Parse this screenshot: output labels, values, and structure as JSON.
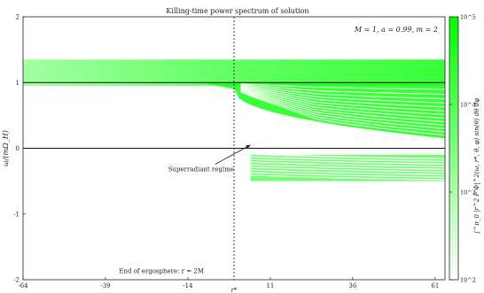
{
  "chart_data": {
    "type": "heatmap",
    "title": "Killing-time power spectrum of solution",
    "xlabel": "r*",
    "ylabel": "ω/(mΩ_H)",
    "xlim": [
      -64,
      64
    ],
    "ylim": [
      -2,
      2
    ],
    "x_ticks": [
      -64,
      -39,
      -14,
      11,
      36,
      61
    ],
    "y_ticks": [
      -2,
      -1,
      0,
      1,
      2
    ],
    "parameters_label": "M = 1, a = 0.99, m = 2",
    "reference_lines": {
      "horizontal": [
        0,
        1
      ],
      "vertical_dotted": 0
    },
    "annotations": {
      "superradiant": {
        "text": "Superradiant regime",
        "x": -10,
        "y": -0.35,
        "arrow_to": [
          5,
          0.05
        ]
      },
      "ergosphere": {
        "text": "End of ergosphere: r = 2M",
        "x": -22,
        "y": -1.9
      }
    },
    "colorbar": {
      "label": "∫^π_0 |r^2 F Φ|^2(ω, r*, θ, φ) sin(θ) dθ dφ",
      "scale": "log",
      "range": [
        100,
        100000
      ],
      "ticks": [
        {
          "value": 100,
          "label": "10^2"
        },
        {
          "value": 1000,
          "label": "10^3"
        },
        {
          "value": 10000,
          "label": "10^4"
        },
        {
          "value": 100000,
          "label": "10^5"
        }
      ],
      "color_low": "#ffffff",
      "color_high": "#00ff00"
    },
    "spectrum": {
      "band_upper": {
        "y_top": 1.35,
        "y_bottom": 0.95,
        "x_fade_start": -30,
        "x_end": 64
      },
      "fringes_upper": {
        "x_start": 0,
        "x_end": 64,
        "y_top_inner": 1.0,
        "y_bottom_at_start": 0.9,
        "y_bottom_at_end": 0.15,
        "count": 14
      },
      "fringes_lower": {
        "x_start": 5,
        "x_end": 64,
        "y_top": -0.1,
        "y_bottom": -0.5,
        "count": 10
      }
    }
  }
}
